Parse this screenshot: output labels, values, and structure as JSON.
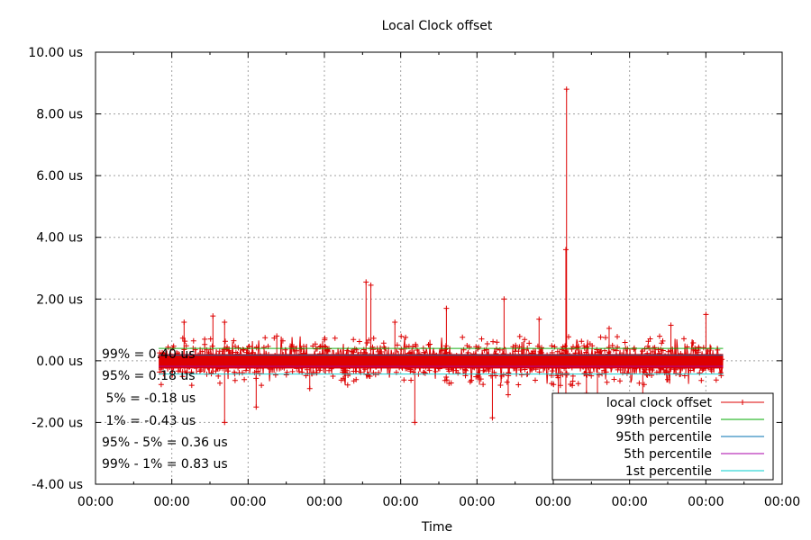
{
  "chart_data": {
    "type": "line",
    "title": "Local Clock offset",
    "xlabel": "Time",
    "ylabel": "",
    "ylim": [
      -4,
      10
    ],
    "y_ticks": [
      {
        "value": -4,
        "label": "-4.00 us"
      },
      {
        "value": -2,
        "label": "-2.00 us"
      },
      {
        "value": 0,
        "label": "0.00 us"
      },
      {
        "value": 2,
        "label": "2.00 us"
      },
      {
        "value": 4,
        "label": "4.00 us"
      },
      {
        "value": 6,
        "label": "6.00 us"
      },
      {
        "value": 8,
        "label": "8.00 us"
      },
      {
        "value": 10,
        "label": "10.00 us"
      }
    ],
    "x_ticks": [
      "00:00",
      "00:00",
      "00:00",
      "00:00",
      "00:00",
      "00:00",
      "00:00",
      "00:00",
      "00:00",
      "00:00"
    ],
    "grid": true,
    "legend_position": "bottom-right",
    "series": [
      {
        "name": "local clock offset",
        "color": "#dd0000"
      },
      {
        "name": "99th percentile",
        "color": "#00aa00",
        "value": 0.4
      },
      {
        "name": "95th percentile",
        "color": "#0072b2",
        "value": 0.18
      },
      {
        "name": "5th percentile",
        "color": "#aa00aa",
        "value": -0.18
      },
      {
        "name": "1st percentile",
        "color": "#00cccc",
        "value": -0.43
      }
    ],
    "spikes": [
      {
        "x": 0.129,
        "y": 1.25
      },
      {
        "x": 0.159,
        "y": 0.7
      },
      {
        "x": 0.171,
        "y": 1.45
      },
      {
        "x": 0.188,
        "y": 1.25
      },
      {
        "x": 0.188,
        "y": -2.0
      },
      {
        "x": 0.234,
        "y": -1.5
      },
      {
        "x": 0.264,
        "y": 0.8
      },
      {
        "x": 0.312,
        "y": -0.9
      },
      {
        "x": 0.394,
        "y": 2.55
      },
      {
        "x": 0.401,
        "y": 2.45
      },
      {
        "x": 0.436,
        "y": 1.25
      },
      {
        "x": 0.465,
        "y": -2.0
      },
      {
        "x": 0.511,
        "y": 1.7
      },
      {
        "x": 0.578,
        "y": -1.85
      },
      {
        "x": 0.601,
        "y": -1.1
      },
      {
        "x": 0.595,
        "y": 2.0
      },
      {
        "x": 0.646,
        "y": 1.35
      },
      {
        "x": 0.677,
        "y": -0.8
      },
      {
        "x": 0.686,
        "y": 8.8
      },
      {
        "x": 0.685,
        "y": 3.6
      },
      {
        "x": 0.685,
        "y": -3.6
      },
      {
        "x": 0.674,
        "y": -2.0
      },
      {
        "x": 0.715,
        "y": -1.05
      },
      {
        "x": 0.731,
        "y": -1.7
      },
      {
        "x": 0.748,
        "y": 1.05
      },
      {
        "x": 0.797,
        "y": -1.5
      },
      {
        "x": 0.838,
        "y": 1.15
      },
      {
        "x": 0.889,
        "y": 1.5
      }
    ],
    "data_range_x": [
      0.092,
      0.914
    ],
    "stats": [
      "99% = 0.40 us",
      "95% = 0.18 us",
      " 5% = -0.18 us",
      " 1% = -0.43 us",
      "95% - 5% = 0.36 us",
      "99% - 1% = 0.83 us"
    ]
  }
}
